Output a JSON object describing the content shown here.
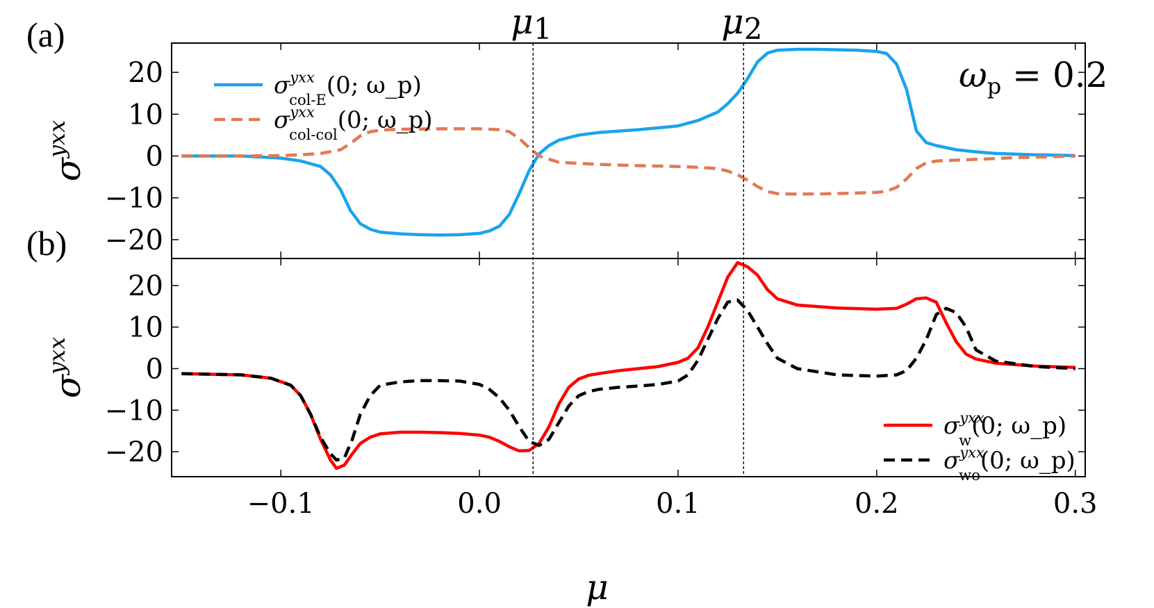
{
  "colors": {
    "col_E": "#1aa3ec",
    "col_col": "#e07a55",
    "w": "#ff0000",
    "wo": "#000000"
  },
  "chart_data": [
    {
      "type": "line",
      "panel_label": "(a)",
      "ylabel": "σ^yxx",
      "xlim": [
        -0.155,
        0.305
      ],
      "ylim": [
        -24.5,
        27
      ],
      "yticks": [
        -20,
        -10,
        0,
        10,
        20
      ],
      "ytick_labels": [
        "−20",
        "−10",
        "0",
        "10",
        "20"
      ],
      "annotation": "ω_p = 0.2",
      "legend_position": "top-left",
      "series": [
        {
          "name": "σ^yxx_col-E(0; ω_p)",
          "style": "solid",
          "x": [
            -0.15,
            -0.12,
            -0.1,
            -0.09,
            -0.08,
            -0.075,
            -0.07,
            -0.065,
            -0.06,
            -0.055,
            -0.05,
            -0.04,
            -0.03,
            -0.02,
            -0.01,
            0.0,
            0.005,
            0.01,
            0.015,
            0.02,
            0.025,
            0.03,
            0.035,
            0.04,
            0.05,
            0.06,
            0.08,
            0.1,
            0.11,
            0.12,
            0.125,
            0.13,
            0.135,
            0.14,
            0.145,
            0.15,
            0.16,
            0.17,
            0.18,
            0.19,
            0.2,
            0.205,
            0.21,
            0.215,
            0.22,
            0.225,
            0.23,
            0.24,
            0.25,
            0.26,
            0.28,
            0.3
          ],
          "values": [
            0,
            0,
            -0.5,
            -1.2,
            -2.5,
            -4.5,
            -8,
            -13,
            -16.2,
            -17.5,
            -18.2,
            -18.6,
            -18.8,
            -18.9,
            -18.8,
            -18.5,
            -17.9,
            -16.8,
            -14,
            -9,
            -3.5,
            0.5,
            2.5,
            3.8,
            5,
            5.6,
            6.3,
            7.2,
            8.5,
            10.5,
            12.5,
            15,
            18.5,
            22.5,
            24.6,
            25.3,
            25.5,
            25.5,
            25.4,
            25.3,
            25,
            24.5,
            22,
            16,
            6,
            3.2,
            2.5,
            1.5,
            1,
            0.6,
            0.3,
            0.1
          ]
        },
        {
          "name": "σ^yxx_col-col(0; ω_p)",
          "style": "dashed",
          "x": [
            -0.15,
            -0.12,
            -0.1,
            -0.09,
            -0.08,
            -0.07,
            -0.065,
            -0.06,
            -0.055,
            -0.05,
            -0.04,
            -0.02,
            0.0,
            0.005,
            0.01,
            0.015,
            0.02,
            0.025,
            0.03,
            0.04,
            0.06,
            0.08,
            0.1,
            0.11,
            0.12,
            0.125,
            0.13,
            0.135,
            0.14,
            0.145,
            0.15,
            0.16,
            0.18,
            0.2,
            0.205,
            0.21,
            0.215,
            0.22,
            0.225,
            0.23,
            0.25,
            0.27,
            0.3
          ],
          "values": [
            0,
            0,
            0.1,
            0.3,
            0.6,
            1.5,
            3,
            4.8,
            5.8,
            6.2,
            6.4,
            6.5,
            6.5,
            6.4,
            6.3,
            5.8,
            4.2,
            2,
            0,
            -1.5,
            -2,
            -2.3,
            -2.5,
            -2.7,
            -3,
            -3.6,
            -4.5,
            -5.8,
            -7.3,
            -8.5,
            -9,
            -9.1,
            -9,
            -8.7,
            -8.4,
            -7.5,
            -5.5,
            -3,
            -1.6,
            -1.2,
            -0.8,
            -0.4,
            0
          ]
        }
      ]
    },
    {
      "type": "line",
      "panel_label": "(b)",
      "ylabel": "σ^yxx",
      "xlabel": "μ",
      "xlim": [
        -0.155,
        0.305
      ],
      "ylim": [
        -26,
        26.5
      ],
      "xticks": [
        -0.1,
        0.0,
        0.1,
        0.2,
        0.3
      ],
      "xtick_labels": [
        "−0.1",
        "0.0",
        "0.1",
        "0.2",
        "0.3"
      ],
      "yticks": [
        -20,
        -10,
        0,
        10,
        20
      ],
      "ytick_labels": [
        "−20",
        "−10",
        "0",
        "10",
        "20"
      ],
      "legend_position": "bottom-right",
      "series": [
        {
          "name": "σ^yxx_w(0; ω_p)",
          "style": "solid",
          "x": [
            -0.15,
            -0.12,
            -0.105,
            -0.095,
            -0.09,
            -0.085,
            -0.08,
            -0.075,
            -0.072,
            -0.068,
            -0.064,
            -0.06,
            -0.055,
            -0.05,
            -0.04,
            -0.03,
            -0.02,
            -0.01,
            0.0,
            0.005,
            0.01,
            0.015,
            0.02,
            0.025,
            0.03,
            0.035,
            0.04,
            0.045,
            0.05,
            0.055,
            0.06,
            0.07,
            0.08,
            0.09,
            0.1,
            0.105,
            0.11,
            0.115,
            0.12,
            0.125,
            0.13,
            0.135,
            0.14,
            0.145,
            0.15,
            0.16,
            0.18,
            0.2,
            0.21,
            0.215,
            0.22,
            0.225,
            0.23,
            0.235,
            0.24,
            0.245,
            0.25,
            0.26,
            0.28,
            0.3
          ],
          "values": [
            -1.2,
            -1.5,
            -2.3,
            -4,
            -6.5,
            -11,
            -17,
            -22,
            -24,
            -23.2,
            -20.5,
            -18,
            -16.5,
            -15.7,
            -15.3,
            -15.3,
            -15.4,
            -15.6,
            -16,
            -16.5,
            -17.5,
            -18.8,
            -19.8,
            -19.7,
            -18,
            -14,
            -8.5,
            -4.5,
            -2.5,
            -1.6,
            -1.2,
            -0.5,
            0,
            0.5,
            1.5,
            2.5,
            5,
            10,
            16,
            22,
            25.5,
            24.5,
            22.5,
            19,
            16.8,
            15.3,
            14.6,
            14.3,
            14.5,
            15.5,
            16.8,
            17,
            16,
            11,
            6.5,
            3.5,
            2.3,
            1.3,
            0.6,
            0.3
          ]
        },
        {
          "name": "σ^yxx_wo(0; ω_p)",
          "style": "dashed",
          "x": [
            -0.15,
            -0.12,
            -0.105,
            -0.095,
            -0.09,
            -0.085,
            -0.08,
            -0.075,
            -0.072,
            -0.068,
            -0.064,
            -0.06,
            -0.055,
            -0.05,
            -0.04,
            -0.03,
            -0.02,
            -0.01,
            0.0,
            0.005,
            0.01,
            0.015,
            0.02,
            0.025,
            0.03,
            0.035,
            0.04,
            0.045,
            0.05,
            0.055,
            0.06,
            0.07,
            0.08,
            0.09,
            0.1,
            0.105,
            0.11,
            0.115,
            0.12,
            0.125,
            0.13,
            0.135,
            0.14,
            0.145,
            0.15,
            0.16,
            0.18,
            0.2,
            0.21,
            0.215,
            0.22,
            0.225,
            0.23,
            0.235,
            0.24,
            0.245,
            0.25,
            0.26,
            0.28,
            0.3
          ],
          "values": [
            -1.2,
            -1.5,
            -2.3,
            -4,
            -6.5,
            -11,
            -16.5,
            -20.5,
            -22,
            -21.5,
            -17,
            -11,
            -6.5,
            -4,
            -3.2,
            -2.9,
            -2.9,
            -3,
            -3.8,
            -5,
            -7,
            -10,
            -14,
            -17.5,
            -18.5,
            -17,
            -13,
            -9,
            -6.5,
            -5.5,
            -5,
            -4.5,
            -4.2,
            -3.8,
            -3,
            -1.5,
            2,
            7,
            12,
            16,
            16.5,
            14,
            10,
            6,
            2.5,
            0,
            -1.5,
            -1.8,
            -1.5,
            -0.5,
            2.5,
            7,
            13,
            14.5,
            13.5,
            10,
            4.5,
            1.8,
            0.5,
            0
          ]
        }
      ]
    }
  ],
  "vlines": [
    {
      "label": "μ_1",
      "x": 0.027
    },
    {
      "label": "μ_2",
      "x": 0.133
    }
  ]
}
